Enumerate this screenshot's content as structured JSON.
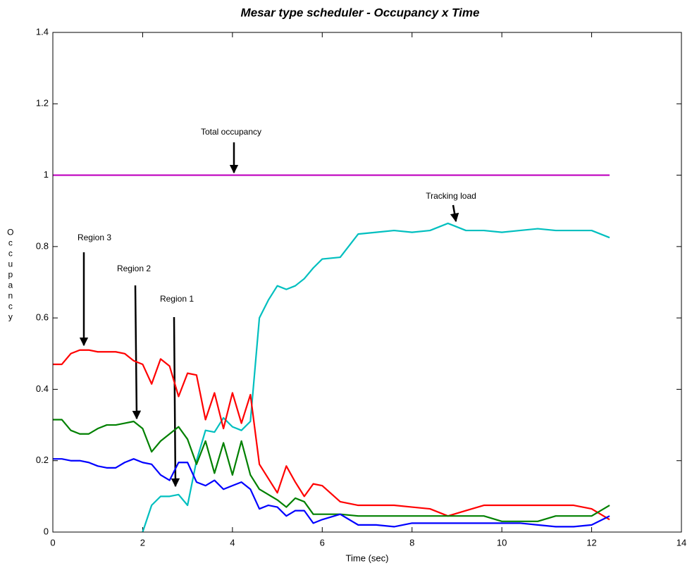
{
  "chart_data": {
    "type": "line",
    "title": "Mesar type scheduler - Occupancy x Time",
    "x_label": "Time (sec)",
    "y_label": "Occupancy",
    "x": [
      0,
      0.2,
      0.4,
      0.6,
      0.8,
      1.0,
      1.2,
      1.4,
      1.6,
      1.8,
      2.0,
      2.2,
      2.4,
      2.6,
      2.8,
      3.0,
      3.2,
      3.4,
      3.6,
      3.8,
      4.0,
      4.2,
      4.4,
      4.6,
      4.8,
      5.0,
      5.2,
      5.4,
      5.6,
      5.8,
      6.0,
      6.4,
      6.8,
      7.2,
      7.6,
      8.0,
      8.4,
      8.8,
      9.2,
      9.6,
      10.0,
      10.4,
      10.8,
      11.2,
      11.6,
      12.0,
      12.4
    ],
    "series": [
      {
        "name": "Total occupancy",
        "color": "#bf00bf",
        "values": [
          1,
          1,
          1,
          1,
          1,
          1,
          1,
          1,
          1,
          1,
          1,
          1,
          1,
          1,
          1,
          1,
          1,
          1,
          1,
          1,
          1,
          1,
          1,
          1,
          1,
          1,
          1,
          1,
          1,
          1,
          1,
          1,
          1,
          1,
          1,
          1,
          1,
          1,
          1,
          1,
          1,
          1,
          1,
          1,
          1,
          1,
          1
        ]
      },
      {
        "name": "Tracking load",
        "color": "#00bfbf",
        "values": [
          null,
          null,
          null,
          null,
          null,
          null,
          null,
          null,
          null,
          null,
          0,
          0.075,
          0.1,
          0.1,
          0.105,
          0.075,
          0.2,
          0.285,
          0.28,
          0.32,
          0.295,
          0.285,
          0.31,
          0.6,
          0.65,
          0.69,
          0.68,
          0.69,
          0.71,
          0.74,
          0.765,
          0.77,
          0.835,
          0.84,
          0.845,
          0.84,
          0.845,
          0.865,
          0.845,
          0.845,
          0.84,
          0.845,
          0.85,
          0.845,
          0.845,
          0.845,
          0.825
        ]
      },
      {
        "name": "Region 3",
        "color": "#ff0000",
        "values": [
          0.47,
          0.47,
          0.5,
          0.51,
          0.51,
          0.505,
          0.505,
          0.505,
          0.5,
          0.48,
          0.47,
          0.415,
          0.485,
          0.465,
          0.38,
          0.445,
          0.44,
          0.315,
          0.39,
          0.29,
          0.39,
          0.305,
          0.385,
          0.19,
          0.15,
          0.11,
          0.185,
          0.14,
          0.1,
          0.135,
          0.13,
          0.085,
          0.075,
          0.075,
          0.075,
          0.07,
          0.065,
          0.045,
          0.06,
          0.075,
          0.075,
          0.075,
          0.075,
          0.075,
          0.075,
          0.065,
          0.035
        ]
      },
      {
        "name": "Region 2",
        "color": "#008000",
        "values": [
          0.315,
          0.315,
          0.285,
          0.275,
          0.275,
          0.29,
          0.3,
          0.3,
          0.305,
          0.31,
          0.29,
          0.225,
          0.255,
          0.275,
          0.295,
          0.26,
          0.19,
          0.255,
          0.165,
          0.25,
          0.16,
          0.255,
          0.16,
          0.12,
          0.105,
          0.09,
          0.07,
          0.095,
          0.085,
          0.05,
          0.05,
          0.05,
          0.045,
          0.045,
          0.045,
          0.045,
          0.045,
          0.045,
          0.045,
          0.045,
          0.03,
          0.03,
          0.03,
          0.045,
          0.045,
          0.045,
          0.075
        ]
      },
      {
        "name": "Region 1",
        "color": "#0000ff",
        "values": [
          0.205,
          0.205,
          0.2,
          0.2,
          0.195,
          0.185,
          0.18,
          0.18,
          0.195,
          0.205,
          0.195,
          0.19,
          0.16,
          0.145,
          0.195,
          0.195,
          0.14,
          0.13,
          0.145,
          0.12,
          0.13,
          0.14,
          0.12,
          0.065,
          0.075,
          0.07,
          0.045,
          0.06,
          0.06,
          0.025,
          0.035,
          0.05,
          0.02,
          0.02,
          0.015,
          0.025,
          0.025,
          0.025,
          0.025,
          0.025,
          0.025,
          0.025,
          0.02,
          0.015,
          0.015,
          0.02,
          0.045
        ]
      }
    ],
    "xlim": [
      0,
      14
    ],
    "xticks": [
      0,
      2,
      4,
      6,
      8,
      10,
      12,
      14
    ],
    "ylim": [
      0,
      1.4
    ],
    "yticks": [
      0,
      0.2,
      0.4,
      0.6,
      0.8,
      1,
      1.2,
      1.4
    ]
  }
}
